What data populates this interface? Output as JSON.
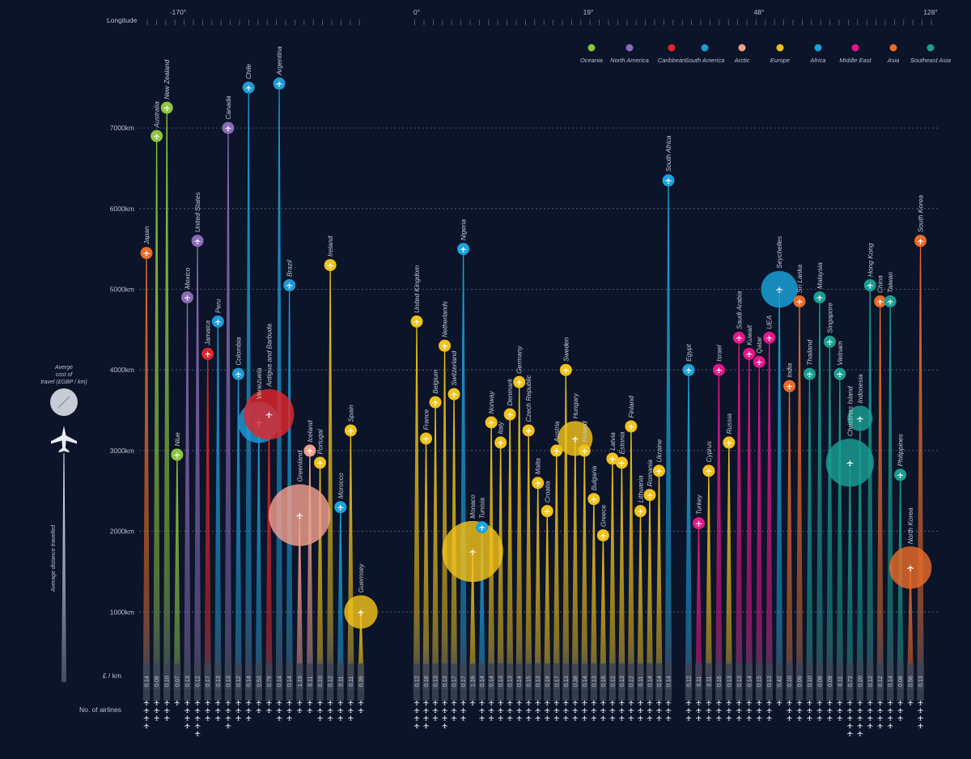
{
  "chart_data": {
    "type": "scatter",
    "title": "",
    "xlabel": "Longitude",
    "ylabel": "Average distance travelled",
    "x_ticks": [
      "-170°",
      "0°",
      "19°",
      "48°",
      "128°"
    ],
    "y_ticks": [
      "1000km",
      "2000km",
      "3000km",
      "4000km",
      "5000km",
      "6000km",
      "7000km"
    ],
    "ylim": [
      0,
      8000
    ],
    "cost_label": "£ / km",
    "airlines_label": "No. of airlines",
    "size_legend_label": "Averge cost of travel (£GBP / km)",
    "distance_legend_label": "Average distance travelled",
    "grid": true,
    "legend_position": "top-right",
    "regions": [
      {
        "name": "Oceania",
        "color": "#8dc63f"
      },
      {
        "name": "North America",
        "color": "#8a6bb8"
      },
      {
        "name": "Caribbean",
        "color": "#e0262b"
      },
      {
        "name": "South America",
        "color": "#1e9ad6"
      },
      {
        "name": "Arctic",
        "color": "#f0a08e"
      },
      {
        "name": "Europe",
        "color": "#f1c21b"
      },
      {
        "name": "Africa",
        "color": "#1aa3dc"
      },
      {
        "name": "Middle East",
        "color": "#e6168a"
      },
      {
        "name": "Asia",
        "color": "#e86b2a"
      },
      {
        "name": "Southeast Asia",
        "color": "#1a9e92"
      }
    ],
    "series": [
      {
        "name": "Japan",
        "region": "Asia",
        "distance": 5450,
        "cost": "0.14",
        "airlines": 4
      },
      {
        "name": "Australia",
        "region": "Oceania",
        "distance": 6900,
        "cost": "0.09",
        "airlines": 3
      },
      {
        "name": "New Zealand",
        "region": "Oceania",
        "distance": 7250,
        "cost": "0.10",
        "airlines": 3
      },
      {
        "name": "Niue",
        "region": "Oceania",
        "distance": 2950,
        "cost": "0.07",
        "airlines": 1
      },
      {
        "name": "Mexico",
        "region": "North America",
        "distance": 4900,
        "cost": "0.13",
        "airlines": 4
      },
      {
        "name": "United States",
        "region": "North America",
        "distance": 5600,
        "cost": "0.12",
        "airlines": 5
      },
      {
        "name": "Jamaica",
        "region": "Caribbean",
        "distance": 4200,
        "cost": "0.17",
        "airlines": 3
      },
      {
        "name": "Peru",
        "region": "South America",
        "distance": 4600,
        "cost": "0.13",
        "airlines": 3
      },
      {
        "name": "Canada",
        "region": "North America",
        "distance": 7000,
        "cost": "0.13",
        "airlines": 4
      },
      {
        "name": "Colombia",
        "region": "South America",
        "distance": 3950,
        "cost": "0.12",
        "airlines": 3
      },
      {
        "name": "Chile",
        "region": "South America",
        "distance": 7500,
        "cost": "0.14",
        "airlines": 3
      },
      {
        "name": "Venezuela",
        "region": "South America",
        "distance": 3350,
        "cost": "0.53",
        "airlines": 2
      },
      {
        "name": "Antigua and Barbuda",
        "region": "Caribbean",
        "distance": 3450,
        "cost": "0.79",
        "airlines": 2
      },
      {
        "name": "Argentina",
        "region": "South America",
        "distance": 7550,
        "cost": "0.14",
        "airlines": 3
      },
      {
        "name": "Brazil",
        "region": "South America",
        "distance": 5050,
        "cost": "0.14",
        "airlines": 3
      },
      {
        "name": "Greenland",
        "region": "Arctic",
        "distance": 2200,
        "cost": "1.19",
        "airlines": 2
      },
      {
        "name": "Iceland",
        "region": "Arctic",
        "distance": 3000,
        "cost": "0.11",
        "airlines": 2
      },
      {
        "name": "Portugal",
        "region": "Europe",
        "distance": 2850,
        "cost": "0.10",
        "airlines": 3
      },
      {
        "name": "Ireland",
        "region": "Europe",
        "distance": 5300,
        "cost": "0.12",
        "airlines": 3
      },
      {
        "name": "Morocco",
        "region": "Africa",
        "distance": 2300,
        "cost": "0.11",
        "airlines": 3
      },
      {
        "name": "Spain",
        "region": "Europe",
        "distance": 3250,
        "cost": "0.11",
        "airlines": 3
      },
      {
        "name": "Guernsey",
        "region": "Europe",
        "distance": 1000,
        "cost": "0.35",
        "airlines": 2
      },
      {
        "name": "United Kingdom",
        "region": "Europe",
        "distance": 4600,
        "cost": "0.12",
        "airlines": 4
      },
      {
        "name": "France",
        "region": "Europe",
        "distance": 3150,
        "cost": "0.18",
        "airlines": 4
      },
      {
        "name": "Belgium",
        "region": "Europe",
        "distance": 3600,
        "cost": "0.13",
        "airlines": 3
      },
      {
        "name": "Netherlands",
        "region": "Europe",
        "distance": 4300,
        "cost": "0.13",
        "airlines": 4
      },
      {
        "name": "Switzerland",
        "region": "Europe",
        "distance": 3700,
        "cost": "0.17",
        "airlines": 3
      },
      {
        "name": "Nigeria",
        "region": "Africa",
        "distance": 5500,
        "cost": "0.17",
        "airlines": 3
      },
      {
        "name": "Monaco",
        "region": "Europe",
        "distance": 1750,
        "cost": "1.16",
        "airlines": 1
      },
      {
        "name": "Tunisia",
        "region": "Africa",
        "distance": 2050,
        "cost": "0.14",
        "airlines": 3
      },
      {
        "name": "Norway",
        "region": "Europe",
        "distance": 3350,
        "cost": "0.14",
        "airlines": 3
      },
      {
        "name": "Italy",
        "region": "Europe",
        "distance": 3100,
        "cost": "0.13",
        "airlines": 3
      },
      {
        "name": "Denmark",
        "region": "Europe",
        "distance": 3450,
        "cost": "0.13",
        "airlines": 3
      },
      {
        "name": "Germany",
        "region": "Europe",
        "distance": 3850,
        "cost": "0.14",
        "airlines": 3
      },
      {
        "name": "Czech Republic",
        "region": "Europe",
        "distance": 3250,
        "cost": "0.15",
        "airlines": 3
      },
      {
        "name": "Malta",
        "region": "Europe",
        "distance": 2600,
        "cost": "0.13",
        "airlines": 3
      },
      {
        "name": "Croatia",
        "region": "Europe",
        "distance": 2250,
        "cost": "0.19",
        "airlines": 3
      },
      {
        "name": "Austria",
        "region": "Europe",
        "distance": 3000,
        "cost": "0.17",
        "airlines": 3
      },
      {
        "name": "Sweden",
        "region": "Europe",
        "distance": 4000,
        "cost": "0.13",
        "airlines": 3
      },
      {
        "name": "Hungary",
        "region": "Europe",
        "distance": 3150,
        "cost": "0.38",
        "airlines": 3
      },
      {
        "name": "Poland",
        "region": "Europe",
        "distance": 3000,
        "cost": "0.14",
        "airlines": 3
      },
      {
        "name": "Bulgaria",
        "region": "Europe",
        "distance": 2400,
        "cost": "0.13",
        "airlines": 3
      },
      {
        "name": "Greece",
        "region": "Europe",
        "distance": 1950,
        "cost": "0.16",
        "airlines": 3
      },
      {
        "name": "Latvia",
        "region": "Europe",
        "distance": 2900,
        "cost": "0.12",
        "airlines": 3
      },
      {
        "name": "Estonia",
        "region": "Europe",
        "distance": 2850,
        "cost": "0.13",
        "airlines": 3
      },
      {
        "name": "Finland",
        "region": "Europe",
        "distance": 3300,
        "cost": "0.12",
        "airlines": 3
      },
      {
        "name": "Lithuania",
        "region": "Europe",
        "distance": 2250,
        "cost": "0.11",
        "airlines": 3
      },
      {
        "name": "Romania",
        "region": "Europe",
        "distance": 2450,
        "cost": "0.14",
        "airlines": 3
      },
      {
        "name": "Ukraine",
        "region": "Europe",
        "distance": 2750,
        "cost": "0.14",
        "airlines": 3
      },
      {
        "name": "South Africa",
        "region": "Africa",
        "distance": 6350,
        "cost": "0.14",
        "airlines": 3
      },
      {
        "name": "Egypt",
        "region": "Africa",
        "distance": 4000,
        "cost": "0.12",
        "airlines": 3
      },
      {
        "name": "Turkey",
        "region": "Middle East",
        "distance": 2100,
        "cost": "0.11",
        "airlines": 3
      },
      {
        "name": "Cyprus",
        "region": "Europe",
        "distance": 2750,
        "cost": "0.11",
        "airlines": 3
      },
      {
        "name": "Israel",
        "region": "Middle East",
        "distance": 4000,
        "cost": "0.16",
        "airlines": 3
      },
      {
        "name": "Russia",
        "region": "Europe",
        "distance": 3100,
        "cost": "0.13",
        "airlines": 3
      },
      {
        "name": "Saudi Arabia",
        "region": "Middle East",
        "distance": 4400,
        "cost": "0.13",
        "airlines": 3
      },
      {
        "name": "Kuwait",
        "region": "Middle East",
        "distance": 4200,
        "cost": "0.14",
        "airlines": 3
      },
      {
        "name": "Qatar",
        "region": "Middle East",
        "distance": 4100,
        "cost": "0.15",
        "airlines": 3
      },
      {
        "name": "UEA",
        "region": "Middle East",
        "distance": 4400,
        "cost": "0.13",
        "airlines": 3
      },
      {
        "name": "Seychelles",
        "region": "Africa",
        "distance": 5000,
        "cost": "0.42",
        "airlines": 1
      },
      {
        "name": "India",
        "region": "Asia",
        "distance": 3800,
        "cost": "0.10",
        "airlines": 3
      },
      {
        "name": "Sri Lanka",
        "region": "Asia",
        "distance": 4850,
        "cost": "0.09",
        "airlines": 3
      },
      {
        "name": "Thailand",
        "region": "Southeast Asia",
        "distance": 3950,
        "cost": "0.10",
        "airlines": 3
      },
      {
        "name": "Malaysia",
        "region": "Southeast Asia",
        "distance": 4900,
        "cost": "0.08",
        "airlines": 3
      },
      {
        "name": "Singapore",
        "region": "Southeast Asia",
        "distance": 4350,
        "cost": "0.09",
        "airlines": 3
      },
      {
        "name": "Vietnam",
        "region": "Southeast Asia",
        "distance": 3950,
        "cost": "0.11",
        "airlines": 3
      },
      {
        "name": "Christmas Island",
        "region": "Southeast Asia",
        "distance": 2850,
        "cost": "0.72",
        "airlines": 5
      },
      {
        "name": "Indonesia",
        "region": "Southeast Asia",
        "distance": 3400,
        "cost": "0.20",
        "airlines": 5
      },
      {
        "name": "Hong Kong",
        "region": "Southeast Asia",
        "distance": 5050,
        "cost": "0.12",
        "airlines": 4
      },
      {
        "name": "China",
        "region": "Asia",
        "distance": 4850,
        "cost": "0.12",
        "airlines": 4
      },
      {
        "name": "Taiwan",
        "region": "Southeast Asia",
        "distance": 4850,
        "cost": "0.14",
        "airlines": 4
      },
      {
        "name": "Philippines",
        "region": "Southeast Asia",
        "distance": 2700,
        "cost": "0.08",
        "airlines": 3
      },
      {
        "name": "North Korea",
        "region": "Asia",
        "distance": 1550,
        "cost": "0.56",
        "airlines": 1
      },
      {
        "name": "South Korea",
        "region": "Asia",
        "distance": 5600,
        "cost": "0.13",
        "airlines": 4
      }
    ]
  }
}
